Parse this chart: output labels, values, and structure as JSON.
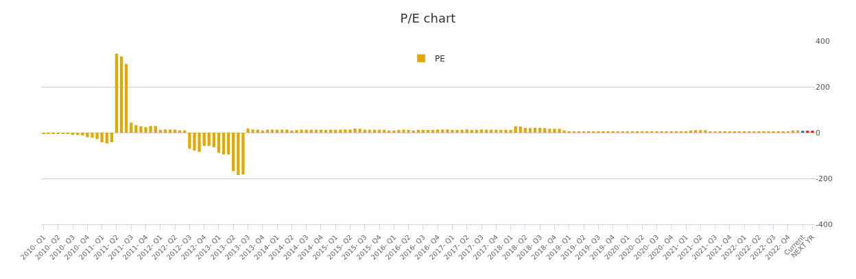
{
  "chart_data": {
    "type": "bar",
    "title": "P/E chart",
    "categories": [
      "2010- Q1",
      null,
      null,
      "2010- Q2",
      null,
      null,
      "2010- Q3",
      null,
      null,
      "2010- Q4",
      null,
      null,
      "2011- Q1",
      null,
      null,
      "2011- Q2",
      null,
      null,
      "2011- Q3",
      null,
      null,
      "2011- Q4",
      null,
      null,
      "2012- Q1",
      null,
      null,
      "2012- Q2",
      null,
      null,
      "2012- Q3",
      null,
      null,
      "2012- Q4",
      null,
      null,
      "2013- Q1",
      null,
      null,
      "2013- Q2",
      null,
      null,
      "2013- Q3",
      null,
      null,
      "2013- Q4",
      null,
      null,
      "2014- Q1",
      null,
      null,
      "2014- Q2",
      null,
      null,
      "2014- Q3",
      null,
      null,
      "2014- Q4",
      null,
      null,
      "2015- Q1",
      null,
      null,
      "2015- Q2",
      null,
      null,
      "2015- Q3",
      null,
      null,
      "2015- Q4",
      null,
      null,
      "2016- Q1",
      null,
      null,
      "2016- Q2",
      null,
      null,
      "2016- Q3",
      null,
      null,
      "2016- Q4",
      null,
      null,
      "2017- Q1",
      null,
      null,
      "2017- Q2",
      null,
      null,
      "2017- Q3",
      null,
      null,
      "2017- Q4",
      null,
      null,
      "2018- Q1",
      null,
      null,
      "2018- Q2",
      null,
      null,
      "2018- Q3",
      null,
      null,
      "2018- Q4",
      null,
      null,
      "2019- Q1",
      null,
      null,
      "2019- Q2",
      null,
      null,
      "2019- Q3",
      null,
      null,
      "2019- Q4",
      null,
      null,
      "2020- Q1",
      null,
      null,
      "2020- Q2",
      null,
      null,
      "2020- Q3",
      null,
      null,
      "2020- Q4",
      null,
      null,
      "2021- Q1",
      null,
      null,
      "2021- Q2",
      null,
      null,
      "2021- Q3",
      null,
      null,
      "2021- Q4",
      null,
      null,
      "2022- Q1",
      null,
      null,
      "2022- Q2",
      null,
      null,
      "2022- Q3",
      null,
      null,
      "2022- Q4",
      null,
      null,
      "Current",
      null,
      "NEXT YR"
    ],
    "series": [
      {
        "name": "PE",
        "color": "#e0a800",
        "values": [
          -3,
          -3,
          -5,
          -5,
          -5,
          -6,
          -10,
          -10,
          -12,
          -20,
          -22,
          -28,
          -42,
          -47,
          -42,
          345,
          333,
          300,
          44,
          33,
          28,
          24,
          29,
          29,
          12,
          14,
          14,
          13,
          10,
          10,
          -70,
          -78,
          -84,
          -58,
          -58,
          -64,
          -88,
          -95,
          -95,
          -168,
          -185,
          -182,
          18,
          14,
          13,
          9,
          13,
          13,
          13,
          13,
          13,
          9,
          11,
          13,
          13,
          13,
          13,
          13,
          12,
          13,
          13,
          13,
          14,
          14,
          18,
          17,
          13,
          13,
          13,
          13,
          12,
          9,
          9,
          12,
          13,
          12,
          9,
          12,
          12,
          12,
          12,
          14,
          14,
          14,
          12,
          12,
          12,
          14,
          12,
          12,
          14,
          13,
          13,
          13,
          12,
          13,
          12,
          28,
          27,
          21,
          20,
          21,
          21,
          20,
          17,
          17,
          17,
          10,
          5,
          5,
          5,
          5,
          5,
          5,
          5,
          5,
          5,
          5,
          5,
          5,
          5,
          5,
          5,
          5,
          5,
          5,
          5,
          5,
          5,
          5,
          5,
          5,
          5,
          10,
          11,
          11,
          11,
          5,
          5,
          5,
          5,
          5,
          5,
          5,
          5,
          5,
          5,
          5,
          5,
          5,
          5,
          5,
          5,
          5,
          10,
          10,
          8,
          8,
          8
        ],
        "colors": [
          "#e0a800",
          "#e0a800",
          "#e0a800",
          "#e0a800",
          "#e0a800",
          "#e0a800",
          "#e0a800",
          "#e0a800",
          "#e0a800",
          "#e0a800",
          "#e0a800",
          "#e0a800",
          "#e0a800",
          "#e0a800",
          "#e0a800",
          "#e0a800",
          "#e0a800",
          "#e0a800",
          "#e0a800",
          "#e0a800",
          "#e0a800",
          "#e0a800",
          "#e0a800",
          "#e0a800",
          "#e0a800",
          "#e0a800",
          "#e0a800",
          "#e0a800",
          "#e0a800",
          "#e0a800",
          "#e0a800",
          "#e0a800",
          "#e0a800",
          "#e0a800",
          "#e0a800",
          "#e0a800",
          "#e0a800",
          "#e0a800",
          "#e0a800",
          "#e0a800",
          "#e0a800",
          "#e0a800",
          "#e0a800",
          "#e0a800",
          "#e0a800",
          "#e0a800",
          "#e0a800",
          "#e0a800",
          "#e0a800",
          "#e0a800",
          "#e0a800",
          "#e0a800",
          "#e0a800",
          "#e0a800",
          "#e0a800",
          "#e0a800",
          "#e0a800",
          "#e0a800",
          "#e0a800",
          "#e0a800",
          "#e0a800",
          "#e0a800",
          "#e0a800",
          "#e0a800",
          "#e0a800",
          "#e0a800",
          "#e0a800",
          "#e0a800",
          "#e0a800",
          "#e0a800",
          "#e0a800",
          "#e0a800",
          "#e0a800",
          "#e0a800",
          "#e0a800",
          "#e0a800",
          "#e0a800",
          "#e0a800",
          "#e0a800",
          "#e0a800",
          "#e0a800",
          "#e0a800",
          "#e0a800",
          "#e0a800",
          "#e0a800",
          "#e0a800",
          "#e0a800",
          "#e0a800",
          "#e0a800",
          "#e0a800",
          "#e0a800",
          "#e0a800",
          "#e0a800",
          "#e0a800",
          "#e0a800",
          "#e0a800",
          "#e0a800",
          "#e0a800",
          "#e0a800",
          "#e0a800",
          "#e0a800",
          "#e0a800",
          "#e0a800",
          "#e0a800",
          "#e0a800",
          "#e0a800",
          "#e0a800",
          "#e0a800",
          "#e0a800",
          "#e0a800",
          "#e0a800",
          "#e0a800",
          "#e0a800",
          "#e0a800",
          "#e0a800",
          "#e0a800",
          "#e0a800",
          "#e0a800",
          "#e0a800",
          "#e0a800",
          "#e0a800",
          "#e0a800",
          "#e0a800",
          "#e0a800",
          "#e0a800",
          "#e0a800",
          "#e0a800",
          "#e0a800",
          "#e0a800",
          "#e0a800",
          "#e0a800",
          "#e0a800",
          "#e0a800",
          "#e0a800",
          "#e0a800",
          "#e0a800",
          "#e0a800",
          "#e0a800",
          "#e0a800",
          "#e0a800",
          "#e0a800",
          "#e0a800",
          "#e0a800",
          "#e0a800",
          "#e0a800",
          "#e0a800",
          "#e0a800",
          "#e0a800",
          "#e0a800",
          "#e0a800",
          "#e0a800",
          "#e0a800",
          "#e0a800",
          "#e0a800",
          "#e0a800",
          "#e0a800",
          "#1a6fb0",
          "#ff0000",
          "#ff0000"
        ]
      }
    ],
    "ylim": [
      -400,
      400
    ],
    "yticks": [
      -400,
      -200,
      0,
      200,
      400
    ],
    "grid": "y",
    "legend": "top"
  }
}
